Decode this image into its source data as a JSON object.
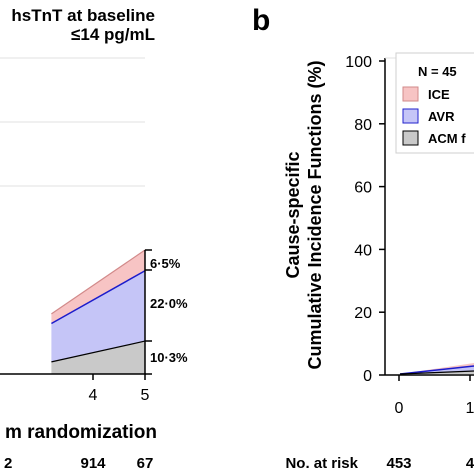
{
  "chart_data": [
    {
      "type": "area",
      "title": "hsTnT at baseline",
      "subtitle": "≤14 pg/mL",
      "xlabel": "m randomization",
      "x_ticks": [
        "4",
        "5"
      ],
      "stack_order": [
        "ACM",
        "AVR",
        "ICE"
      ],
      "x": [
        3.2,
        5
      ],
      "series": [
        {
          "key": "ICE",
          "values": [
            3.0,
            6.5
          ],
          "color": "#f7c4c4"
        },
        {
          "key": "AVR",
          "values": [
            12.0,
            22.0
          ],
          "color": "#c5c5f7"
        },
        {
          "key": "ACM",
          "values": [
            3.8,
            10.3
          ],
          "color": "#c9c9c9"
        }
      ],
      "end_labels": [
        "6·5%",
        "22·0%",
        "10·3%"
      ],
      "risk_values": [
        "2",
        "914",
        "67"
      ]
    },
    {
      "type": "area",
      "panel_label": "b",
      "ylabel_line1": "Cause-specific",
      "ylabel_line2": "Cumulative Incidence Functions (%)",
      "ylim": [
        0,
        100
      ],
      "y_ticks": [
        "0",
        "20",
        "40",
        "60",
        "80",
        "100"
      ],
      "x_ticks": [
        "0",
        "1"
      ],
      "legend": {
        "n_label": "N = 45",
        "entries": [
          {
            "label": "ICE",
            "color": "#f7c4c4",
            "border": "#d28a8a"
          },
          {
            "label": "AVR",
            "color": "#c5c5f7",
            "border": "#2222cc"
          },
          {
            "label": "ACM f",
            "color": "#c9c9c9",
            "border": "#000000"
          }
        ]
      },
      "risk_label": "No. at risk",
      "risk_values": [
        "453",
        "4"
      ]
    }
  ]
}
